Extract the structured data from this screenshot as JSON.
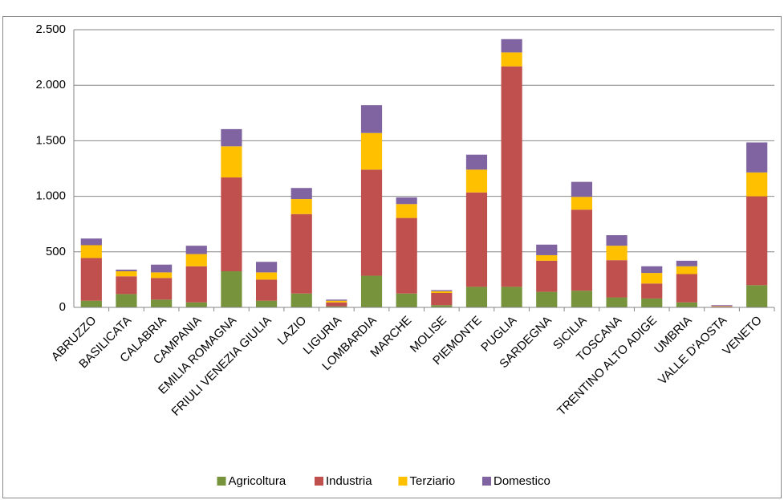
{
  "chart_data": {
    "type": "stacked-bar",
    "categories": [
      "ABRUZZO",
      "BASILICATA",
      "CALABRIA",
      "CAMPANIA",
      "EMILIA ROMAGNA",
      "FRIULI VENEZIA  GIULIA",
      "LAZIO",
      "LIGURIA",
      "LOMBARDIA",
      "MARCHE",
      "MOLISE",
      "PIEMONTE",
      "PUGLIA",
      "SARDEGNA",
      "SICILIA",
      "TOSCANA",
      "TRENTINO  ALTO ADIGE",
      "UMBRIA",
      "VALLE D'AOSTA",
      "VENETO"
    ],
    "series": [
      {
        "name": "Agricoltura",
        "color": "#77933c",
        "values": [
          60,
          120,
          70,
          45,
          325,
          60,
          125,
          10,
          285,
          125,
          20,
          185,
          185,
          140,
          150,
          90,
          80,
          45,
          5,
          200
        ]
      },
      {
        "name": "Industria",
        "color": "#c0504d",
        "values": [
          385,
          160,
          195,
          325,
          845,
          190,
          715,
          35,
          955,
          680,
          110,
          850,
          1985,
          280,
          730,
          335,
          135,
          255,
          5,
          800
        ]
      },
      {
        "name": "Terziario",
        "color": "#ffc000",
        "values": [
          115,
          45,
          50,
          110,
          280,
          65,
          135,
          15,
          330,
          125,
          15,
          205,
          125,
          50,
          115,
          130,
          95,
          70,
          3,
          215
        ]
      },
      {
        "name": "Domestico",
        "color": "#8064a2",
        "values": [
          60,
          15,
          70,
          75,
          155,
          95,
          100,
          10,
          250,
          60,
          10,
          135,
          120,
          95,
          135,
          95,
          60,
          50,
          7,
          270
        ]
      }
    ],
    "ylim": [
      0,
      2500
    ],
    "yticks": [
      0,
      500,
      {
        "value": 1000,
        "label": "1.000"
      },
      {
        "value": 1500,
        "label": "1.500"
      },
      {
        "value": 2000,
        "label": "2.000"
      },
      {
        "value": 2500,
        "label": "2.500"
      }
    ],
    "grid": true,
    "legend": "bottom"
  }
}
